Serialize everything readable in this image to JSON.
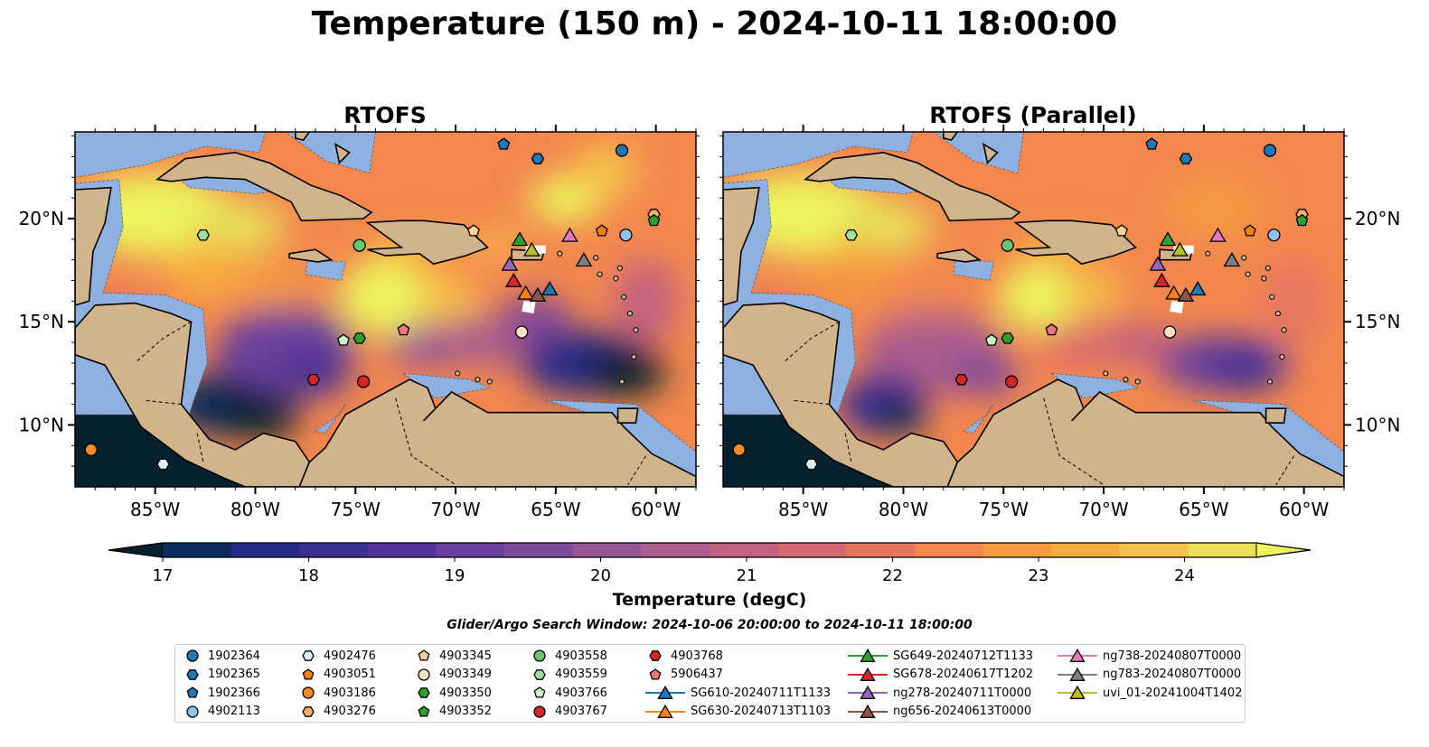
{
  "title": "Temperature (150 m) - 2024-10-11 18:00:00",
  "panels": [
    {
      "title": "RTOFS"
    },
    {
      "title": "RTOFS (Parallel)"
    }
  ],
  "axes": {
    "lon_ticks": [
      "85°W",
      "80°W",
      "75°W",
      "70°W",
      "65°W",
      "60°W"
    ],
    "lat_ticks": [
      "20°N",
      "15°N",
      "10°N"
    ]
  },
  "colorbar": {
    "label": "Temperature (degC)",
    "ticks": [
      "17",
      "18",
      "19",
      "20",
      "21",
      "22",
      "23",
      "24"
    ],
    "colors": [
      "#06202e",
      "#0c2c5c",
      "#252c88",
      "#3c2f96",
      "#55339c",
      "#6b3f9e",
      "#804a9a",
      "#965596",
      "#ac5d8c",
      "#c26080",
      "#d66670",
      "#e67560",
      "#f3874e",
      "#f6993f",
      "#f6ac3c",
      "#f4c14a",
      "#e8de58",
      "#ecf65c"
    ]
  },
  "search_window": "Glider/Argo Search Window: 2024-10-06 20:00:00 to 2024-10-11 18:00:00",
  "legend": {
    "columns": [
      [
        {
          "label": "1902364",
          "marker": "circle",
          "color": "#1f77b4"
        },
        {
          "label": "1902365",
          "marker": "hexagon",
          "color": "#1f77b4"
        },
        {
          "label": "1902366",
          "marker": "pentagon",
          "color": "#1f77b4"
        },
        {
          "label": "4902113",
          "marker": "circle",
          "color": "#8fc3ea"
        }
      ],
      [
        {
          "label": "4902476",
          "marker": "hexagon",
          "color": "#ddeefa"
        },
        {
          "label": "4903051",
          "marker": "pentagon",
          "color": "#ff7f0e"
        },
        {
          "label": "4903186",
          "marker": "circle",
          "color": "#ff8a24"
        },
        {
          "label": "4903276",
          "marker": "hexagon",
          "color": "#ffae6a"
        }
      ],
      [
        {
          "label": "4903345",
          "marker": "pentagon",
          "color": "#ffd39a"
        },
        {
          "label": "4903349",
          "marker": "circle",
          "color": "#ffe2c4"
        },
        {
          "label": "4903350",
          "marker": "hexagon",
          "color": "#2ca02c"
        },
        {
          "label": "4903352",
          "marker": "pentagon",
          "color": "#2ca02c"
        }
      ],
      [
        {
          "label": "4903558",
          "marker": "circle",
          "color": "#6cc56c"
        },
        {
          "label": "4903559",
          "marker": "hexagon",
          "color": "#a3df9f"
        },
        {
          "label": "4903766",
          "marker": "pentagon",
          "color": "#cff3c8"
        },
        {
          "label": "4903767",
          "marker": "circle",
          "color": "#d62728"
        }
      ],
      [
        {
          "label": "4903768",
          "marker": "hexagon",
          "color": "#d62728"
        },
        {
          "label": "5906437",
          "marker": "pentagon",
          "color": "#e8787e"
        },
        {
          "label": "SG610-20240711T1133",
          "marker": "triangle-line",
          "color": "#1f77b4"
        },
        {
          "label": "SG630-20240713T1103",
          "marker": "triangle-line",
          "color": "#ff7f0e"
        }
      ],
      [
        {
          "label": "SG649-20240712T1133",
          "marker": "triangle-line",
          "color": "#2ca02c"
        },
        {
          "label": "SG678-20240617T1202",
          "marker": "triangle-line",
          "color": "#d62728"
        },
        {
          "label": "ng278-20240711T0000",
          "marker": "triangle-line",
          "color": "#9467bd"
        },
        {
          "label": "ng656-20240613T0000",
          "marker": "triangle-line",
          "color": "#8c564b"
        }
      ],
      [
        {
          "label": "ng738-20240807T0000",
          "marker": "triangle-line",
          "color": "#e377c2"
        },
        {
          "label": "ng783-20240807T0000",
          "marker": "triangle-line",
          "color": "#7f7f7f"
        },
        {
          "label": "uvi_01-20241004T1402",
          "marker": "triangle-line",
          "color": "#bcbd22"
        }
      ]
    ]
  },
  "chart_data": {
    "type": "map-contour",
    "lon_range": [
      -89,
      -58
    ],
    "lat_range": [
      7,
      24.2
    ],
    "lon_ticks": [
      -85,
      -80,
      -75,
      -70,
      -65,
      -60
    ],
    "lat_ticks": [
      20,
      15,
      10
    ],
    "colorbar_range": [
      16.6,
      24.6
    ],
    "argo_floats": [
      {
        "id": "1902364",
        "lon": -61.7,
        "lat": 23.3
      },
      {
        "id": "1902365",
        "lon": -65.9,
        "lat": 22.9
      },
      {
        "id": "1902366",
        "lon": -67.6,
        "lat": 23.6
      },
      {
        "id": "4902113",
        "lon": -61.5,
        "lat": 19.2
      },
      {
        "id": "4902476",
        "lon": -84.6,
        "lat": 8.1
      },
      {
        "id": "4903051",
        "lon": -62.7,
        "lat": 19.4
      },
      {
        "id": "4903186",
        "lon": -88.2,
        "lat": 8.8
      },
      {
        "id": "4903276",
        "lon": -60.1,
        "lat": 20.2
      },
      {
        "id": "4903345",
        "lon": -69.1,
        "lat": 19.4
      },
      {
        "id": "4903349",
        "lon": -66.7,
        "lat": 14.5
      },
      {
        "id": "4903350",
        "lon": -74.8,
        "lat": 14.2
      },
      {
        "id": "4903352",
        "lon": -60.1,
        "lat": 19.9
      },
      {
        "id": "4903558",
        "lon": -74.8,
        "lat": 18.7
      },
      {
        "id": "4903559",
        "lon": -82.6,
        "lat": 19.2
      },
      {
        "id": "4903766",
        "lon": -75.6,
        "lat": 14.1
      },
      {
        "id": "4903767",
        "lon": -74.6,
        "lat": 12.1
      },
      {
        "id": "4903768",
        "lon": -77.1,
        "lat": 12.2
      },
      {
        "id": "5906437",
        "lon": -72.6,
        "lat": 14.6
      }
    ],
    "gliders": [
      {
        "id": "SG610-20240711T1133",
        "lon": -65.3,
        "lat": 16.6
      },
      {
        "id": "SG630-20240713T1103",
        "lon": -66.5,
        "lat": 16.4
      },
      {
        "id": "SG649-20240712T1133",
        "lon": -66.8,
        "lat": 19.0
      },
      {
        "id": "SG678-20240617T1202",
        "lon": -67.1,
        "lat": 17.0
      },
      {
        "id": "ng278-20240711T0000",
        "lon": -67.3,
        "lat": 17.8
      },
      {
        "id": "ng656-20240613T0000",
        "lon": -65.9,
        "lat": 16.3
      },
      {
        "id": "ng738-20240807T0000",
        "lon": -64.3,
        "lat": 19.2
      },
      {
        "id": "ng783-20240807T0000",
        "lon": -63.6,
        "lat": 18.0
      },
      {
        "id": "uvi_01-20241004T1402",
        "lon": -66.2,
        "lat": 18.5
      }
    ]
  }
}
